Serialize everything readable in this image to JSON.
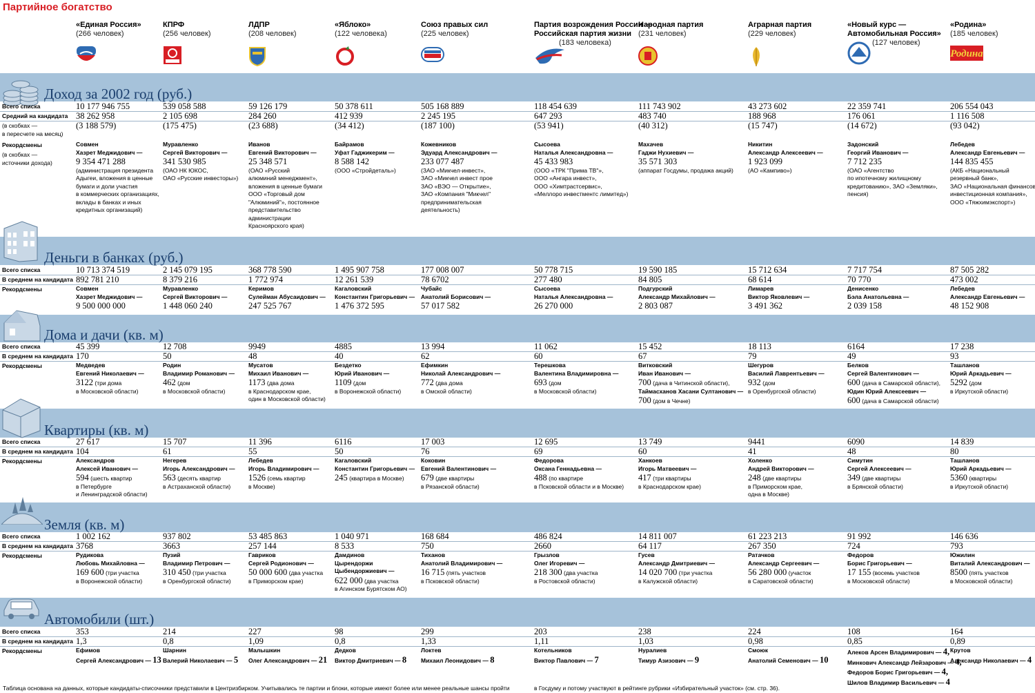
{
  "title": "Партийное богатство",
  "parties": [
    {
      "name": "«Единая Россия»",
      "count": "(266 человек)"
    },
    {
      "name": "КПРФ",
      "count": "(256 человек)"
    },
    {
      "name": "ЛДПР",
      "count": "(208 человек)"
    },
    {
      "name": "«Яблоко»",
      "count": "(122 человека)"
    },
    {
      "name": "Союз правых сил",
      "count": "(225 человек)"
    },
    {
      "name": "Партия возрождения России —\nРоссийская партия жизни",
      "count": "(183 человека)"
    },
    {
      "name": "Народная партия",
      "count": "(231 человек)"
    },
    {
      "name": "Аграрная партия",
      "count": "(229 человек)"
    },
    {
      "name": "«Новый курс —\nАвтомобильная Россия»",
      "count": "(127 человек)"
    },
    {
      "name": "«Родина»",
      "count": "(185 человек)"
    }
  ],
  "logos": {
    "rodina": "Родина",
    "kprf": "КПРФ",
    "sps": "СОЮЗ ПРАВЫХ СИЛ"
  },
  "sections": [
    {
      "title": "Доход за 2002 год (руб.)",
      "icon": "coins-icon",
      "labels": [
        "Всего списка",
        "Средний на кандидата",
        "(в скобках —",
        "в пересчете на месяц)",
        "Рекордсмены",
        "(в скобках —",
        "источники дохода)"
      ],
      "total": [
        "10 177 946 755",
        "539 058 588",
        "59 126 179",
        "50 378 611",
        "505 168 889",
        "118 454 639",
        "111 743 902",
        "43 273 602",
        "22 359 741",
        "206 554 043"
      ],
      "avg": [
        "38 262 958",
        "2 105 698",
        "284 260",
        "412 939",
        "2 245 195",
        "647 293",
        "483 740",
        "188 968",
        "176 061",
        "1 116 508"
      ],
      "avg_month": [
        "(3 188 579)",
        "(175 475)",
        "(23 688)",
        "(34 412)",
        "(187 100)",
        "(53 941)",
        "(40 312)",
        "(15 747)",
        "(14 672)",
        "(93 042)"
      ],
      "records": [
        {
          "surname": "Совмен",
          "fullname": "Хазрет Меджидович —",
          "value": "9 354 471 288",
          "note": [
            "(администрация президента",
            "Адыгеи, вложения в ценные",
            "бумаги и доли участия",
            "в коммерческих организациях,",
            "вклады в банках и иных",
            "кредитных организаций)"
          ]
        },
        {
          "surname": "Муравленко",
          "fullname": "Сергей Викторович —",
          "value": "341 530 985",
          "note": [
            "(ОАО НК ЮКОС,",
            "ОАО «Русские инвесторы»)"
          ]
        },
        {
          "surname": "Иванов",
          "fullname": "Евгений Викторович —",
          "value": "25 348 571",
          "note": [
            "(ОАО «Русский",
            "алюминий менеджмент»,",
            "вложения в ценные бумаги",
            "ООО «Торговый дом",
            "\"Алюминий\"», постоянное",
            "представительство",
            "администрации",
            "Красноярского края)"
          ]
        },
        {
          "surname": "Байрамов",
          "fullname": "Уфат Гаджикерим —",
          "value": "8 588 142",
          "note": [
            "(ООО «Стройдеталь»)"
          ]
        },
        {
          "surname": "Кожевников",
          "fullname": "Эдуард Александрович —",
          "value": "233 077 487",
          "note": [
            "(ЗАО «Микчел-инвест»,",
            "ЗАО «Микчел инвест прое",
            "ЗАО «ВЭО — Открытие»,",
            "ЗАО «Компания \"Микчел\"",
            "предпринимательская",
            "деятельность)"
          ]
        },
        {
          "surname": "Сысоева",
          "fullname": "Наталья Александровна —",
          "value": "45 433 983",
          "note": [
            "(ООО «ТРК \"Прима ТВ\"»,",
            "ООО «Ангара инвест»,",
            "ООО «Химтрастсервис»,",
            "«Меллоро инвестментс лимитед»)"
          ]
        },
        {
          "surname": "Махачев",
          "fullname": "Гаджи Нухиевич —",
          "value": "35 571 303",
          "note": [
            "(аппарат Госдумы, продажа акций)"
          ]
        },
        {
          "surname": "Никитин",
          "fullname": "Александр Алексеевич —",
          "value": "1 923 099",
          "note": [
            "(АО «Кампиво»)"
          ]
        },
        {
          "surname": "Задонский",
          "fullname": "Георгий Иванович —",
          "value": "7 712 235",
          "note": [
            "(ОАО «Агентство",
            "по ипотечному жилищному",
            "кредитованию», ЗАО «Земляки»,",
            "пенсия)"
          ]
        },
        {
          "surname": "Лебедев",
          "fullname": "Александр Евгеньевич —",
          "value": "144 835 455",
          "note": [
            "(АКБ «Национальный",
            "резервный банк»,",
            "ЗАО «Национальная финансово-",
            "инвестиционная компания»,",
            "ООО «Тяжхимэкспорт»)"
          ]
        }
      ]
    },
    {
      "title": "Деньги в банках (руб.)",
      "icon": "building-icon",
      "labels": [
        "Всего списка",
        "В среднем на кандидата",
        "Рекордсмены"
      ],
      "total": [
        "10 713 374 519",
        "2 145 079 195",
        "368 778 590",
        "1 495 907 758",
        "177 008 007",
        "50 778 715",
        "19 590 185",
        "15 712 634",
        "7 717 754",
        "87 505 282"
      ],
      "avg": [
        "892 781 210",
        "8 379 216",
        "1 772 974",
        "12 261 539",
        "78 6702",
        "277 480",
        "84 805",
        "68 614",
        "70 770",
        "473 002"
      ],
      "records": [
        {
          "surname": "Совмен",
          "fullname": "Хазрет Меджидович —",
          "value": "9 500 000 000",
          "note": []
        },
        {
          "surname": "Муравленко",
          "fullname": "Сергей Викторович —",
          "value": "1 448 060 240",
          "note": []
        },
        {
          "surname": "Керимов",
          "fullname": "Сулейман Абусаидович —",
          "value": "247 525 767",
          "note": []
        },
        {
          "surname": "Кагаловский",
          "fullname": "Константин Григорьевич —",
          "value": "1 476 372 595",
          "note": []
        },
        {
          "surname": "Чубайс",
          "fullname": "Анатолий Борисович —",
          "value": "57 017 582",
          "note": []
        },
        {
          "surname": "Сысоева",
          "fullname": "Наталья Александровна —",
          "value": "26 270 000",
          "note": []
        },
        {
          "surname": "Подгурский",
          "fullname": "Александр Михайлович —",
          "value": "2 803 087",
          "note": []
        },
        {
          "surname": "Лимарев",
          "fullname": "Виктор Яковлевич —",
          "value": "3 491 362",
          "note": []
        },
        {
          "surname": "Денисенко",
          "fullname": "Бэла Анатольевна —",
          "value": "2 039 158",
          "note": []
        },
        {
          "surname": "Лебедев",
          "fullname": "Александр Евгеньевич —",
          "value": "48 152 908",
          "note": []
        }
      ]
    },
    {
      "title": "Дома и дачи (кв. м)",
      "icon": "house-icon",
      "labels": [
        "Всего списка",
        "В среднем на кандидата",
        "Рекордсмены"
      ],
      "total": [
        "45 399",
        "12 708",
        "9949",
        "4885",
        "13 994",
        "11 062",
        "15 452",
        "18 113",
        "6164",
        "17 238"
      ],
      "avg": [
        "170",
        "50",
        "48",
        "40",
        "62",
        "60",
        "67",
        "79",
        "49",
        "93"
      ],
      "records": [
        {
          "surname": "Медведев",
          "fullname": "Евгений Николаевич —",
          "value": "3122",
          "inline": "(три дома",
          "note": [
            "в Московской области)"
          ]
        },
        {
          "surname": "Родин",
          "fullname": "Владимир Романович —",
          "value": "462",
          "inline": "(дом",
          "note": [
            "в Московской области)"
          ]
        },
        {
          "surname": "Мусатов",
          "fullname": "Михаил Иванович —",
          "value": "1173",
          "inline": "(два дома",
          "note": [
            "в Краснодарском крае,",
            "один в Московской области)"
          ]
        },
        {
          "surname": "Бездетко",
          "fullname": "Юрий Иванович —",
          "value": "1109",
          "inline": "(дом",
          "note": [
            "в Воронежской области)"
          ]
        },
        {
          "surname": "Ефимкин",
          "fullname": "Николай Александрович —",
          "value": "772",
          "inline": "(два дома",
          "note": [
            "в Омской области)"
          ]
        },
        {
          "surname": "Терешкова",
          "fullname": "Валентина Владимировна —",
          "value": "693",
          "inline": "(дом",
          "note": [
            "в Московской области)"
          ]
        },
        {
          "surname": "Витковский",
          "fullname": "Иван Иванович —",
          "value": "700",
          "inline": "(дача в Читинской области),",
          "note": [],
          "extra_fullname": "Таймасханов Хасани Султанович —",
          "extra_value": "700",
          "extra_inline": "(дом в Чечне)"
        },
        {
          "surname": "Шегуров",
          "fullname": "Василий Лаврентьевич —",
          "value": "932",
          "inline": "(дом",
          "note": [
            "в Оренбургской области)"
          ]
        },
        {
          "surname": "Белков",
          "fullname": "Сергей Валентинович —",
          "value": "600",
          "inline": "(дача в Самарской области),",
          "note": [],
          "extra_fullname": "Юдин Юрий Алексеевич —",
          "extra_value": "600",
          "extra_inline": "(дача в Самарской области)"
        },
        {
          "surname": "Ташланов",
          "fullname": "Юрий Аркадьевич —",
          "value": "5292",
          "inline": "(дом",
          "note": [
            "в Иркутской области)"
          ]
        }
      ]
    },
    {
      "title": "Квартиры (кв. м)",
      "icon": "apartment-icon",
      "labels": [
        "Всего списка",
        "В среднем на кандидата",
        "Рекордсмены"
      ],
      "total": [
        "27 617",
        "15 707",
        "11 396",
        "6116",
        "17 003",
        "12 695",
        "13 749",
        "9441",
        "6090",
        "14 839"
      ],
      "avg": [
        "104",
        "61",
        "55",
        "50",
        "76",
        "69",
        "60",
        "41",
        "48",
        "80"
      ],
      "records": [
        {
          "surname": "Александров",
          "fullname": "Алексей Иванович —",
          "value": "594",
          "inline": "(шесть квартир",
          "note": [
            "в Петербурге",
            "и Ленинградской области)"
          ]
        },
        {
          "surname": "Негерев",
          "fullname": "Игорь Александрович —",
          "value": "563",
          "inline": "(десять квартир",
          "note": [
            "в Астраханской области)"
          ]
        },
        {
          "surname": "Лебедев",
          "fullname": "Игорь Владимирович —",
          "value": "1526",
          "inline": "(семь квартир",
          "note": [
            "в Москве)"
          ]
        },
        {
          "surname": "Кагаловский",
          "fullname": "Константин Григорьевич —",
          "value": "245",
          "inline": "(квартира в Москве)",
          "note": []
        },
        {
          "surname": "Коковин",
          "fullname": "Евгений Валентинович —",
          "value": "679",
          "inline": "(две квартиры",
          "note": [
            "в Рязанской области)"
          ]
        },
        {
          "surname": "Федорова",
          "fullname": "Оксана Геннадьевна —",
          "value": "488",
          "inline": "(по квартире",
          "note": [
            "в Псковской области и в Москве)"
          ]
        },
        {
          "surname": "Ханкоев",
          "fullname": "Игорь Матвеевич —",
          "value": "417",
          "inline": "(три квартиры",
          "note": [
            "в Краснодарском крае)"
          ]
        },
        {
          "surname": "Холенко",
          "fullname": "Андрей Викторович —",
          "value": "248",
          "inline": "(две квартиры",
          "note": [
            "в Приморском крае,",
            "одна в Москве)"
          ]
        },
        {
          "surname": "Симутин",
          "fullname": "Сергей Алексеевич —",
          "value": "349",
          "inline": "(две квартиры",
          "note": [
            "в Брянской области)"
          ]
        },
        {
          "surname": "Ташланов",
          "fullname": "Юрий Аркадьевич —",
          "value": "5360",
          "inline": "(квартиры",
          "note": [
            "в Иркутской области)"
          ]
        }
      ]
    },
    {
      "title": "Земля (кв. м)",
      "icon": "land-icon",
      "labels": [
        "Всего списка",
        "В среднем на кандидата",
        "Рекордсмены"
      ],
      "total": [
        "1 002 162",
        "937 802",
        "53 485 863",
        "1 040 971",
        "168 684",
        "486 824",
        "14 811 007",
        "61 223 213",
        "91 992",
        "146 636"
      ],
      "avg": [
        "3768",
        "3663",
        "257 144",
        "8 533",
        "750",
        "2660",
        "64 117",
        "267 350",
        "724",
        "793"
      ],
      "records": [
        {
          "surname": "Рудикова",
          "fullname": "Любовь Михайловна —",
          "value": "169 600",
          "inline": "(три участка",
          "note": [
            "в Воронежской области)"
          ]
        },
        {
          "surname": "Пузий",
          "fullname": "Владимир Петрович —",
          "value": "310 450",
          "inline": "(три участка",
          "note": [
            "в Оренбургской области)"
          ]
        },
        {
          "surname": "Гавриков",
          "fullname": "Сергей Родионович —",
          "value": "50 000 600",
          "inline": "(два участка",
          "note": [
            "в Приморском крае)"
          ]
        },
        {
          "surname": "Дамдинов",
          "fullname": "Цырендоржи",
          "fullname2": "Цыбендоржиевич —",
          "value": "622 000",
          "inline": "(два участка",
          "note": [
            "в Агинском Бурятском АО)"
          ]
        },
        {
          "surname": "Тиханов",
          "fullname": "Анатолий Владимирович —",
          "value": "16 715",
          "inline": "(пять участков",
          "note": [
            "в Псковской области)"
          ]
        },
        {
          "surname": "Грызлов",
          "fullname": "Олег Игоревич —",
          "value": "218 300",
          "inline": "(два участка",
          "note": [
            "в Ростовской области)"
          ]
        },
        {
          "surname": "Гусев",
          "fullname": "Александр Дмитриевич —",
          "value": "14 020 700",
          "inline": "(три участка",
          "note": [
            "в Калужской области)"
          ]
        },
        {
          "surname": "Ратачков",
          "fullname": "Александр Сергеевич —",
          "value": "56 280 000",
          "inline": "(участок",
          "note": [
            "в Саратовской области)"
          ]
        },
        {
          "surname": "Федоров",
          "fullname": "Борис Григорьевич —",
          "value": "17 155",
          "inline": "(восемь участков",
          "note": [
            "в Московской области)"
          ]
        },
        {
          "surname": "Южилин",
          "fullname": "Виталий Александрович —",
          "value": "8500",
          "inline": "(пять участков",
          "note": [
            "в Московской области)"
          ]
        }
      ]
    },
    {
      "title": "Автомобили (шт.)",
      "icon": "car-icon",
      "labels": [
        "Всего списка",
        "В среднем на кандидата",
        "Рекордсмены"
      ],
      "total": [
        "353",
        "214",
        "227",
        "98",
        "299",
        "203",
        "238",
        "224",
        "108",
        "164"
      ],
      "avg": [
        "1,3",
        "0,8",
        "1,09",
        "0,8",
        "1,33",
        "1,11",
        "1,03",
        "0,98",
        "0,85",
        "0,89"
      ],
      "records": [
        {
          "surname": "Ефимов",
          "fullname": "Сергей Александрович —",
          "value": "13"
        },
        {
          "surname": "Шарнин",
          "fullname": "Валерий Николаевич —",
          "value": "5"
        },
        {
          "surname": "Малышкин",
          "fullname": "Олег Александрович —",
          "value": "21"
        },
        {
          "surname": "Дедков",
          "fullname": "Виктор Дмитриевич —",
          "value": "8"
        },
        {
          "surname": "Локтев",
          "fullname": "Михаил Леонидович —",
          "value": "8"
        },
        {
          "surname": "Котельников",
          "fullname": "Виктор Павлович —",
          "value": "7"
        },
        {
          "surname": "Нуралиев",
          "fullname": "Тимур Азизович —",
          "value": "9"
        },
        {
          "surname": "Смоюк",
          "fullname": "Анатолий Семенович —",
          "value": "10"
        },
        {
          "surname": "Алеков Арсен Владимирович —",
          "fullname": "",
          "value": "4,",
          "extra": [
            "Минкович Александр Лейзарович —",
            "Федоров Борис Григорьевич —",
            "Шилов Владимир Васильевич —"
          ],
          "extra_values": [
            "4,",
            "4,",
            "4"
          ]
        },
        {
          "surname": "Крутов",
          "fullname": "Александр Николаевич —",
          "value": "4"
        }
      ]
    }
  ],
  "footer": {
    "left": "Таблица основана на данных, которые кандидаты-списочники представили в Центризбирком. Учитывались те партии и блоки, которые имеют более или менее реальные шансы пройти",
    "right": "в Госдуму и потому участвуют в рейтинге рубрики «Избирательный участок» (см. стр. 36)."
  }
}
